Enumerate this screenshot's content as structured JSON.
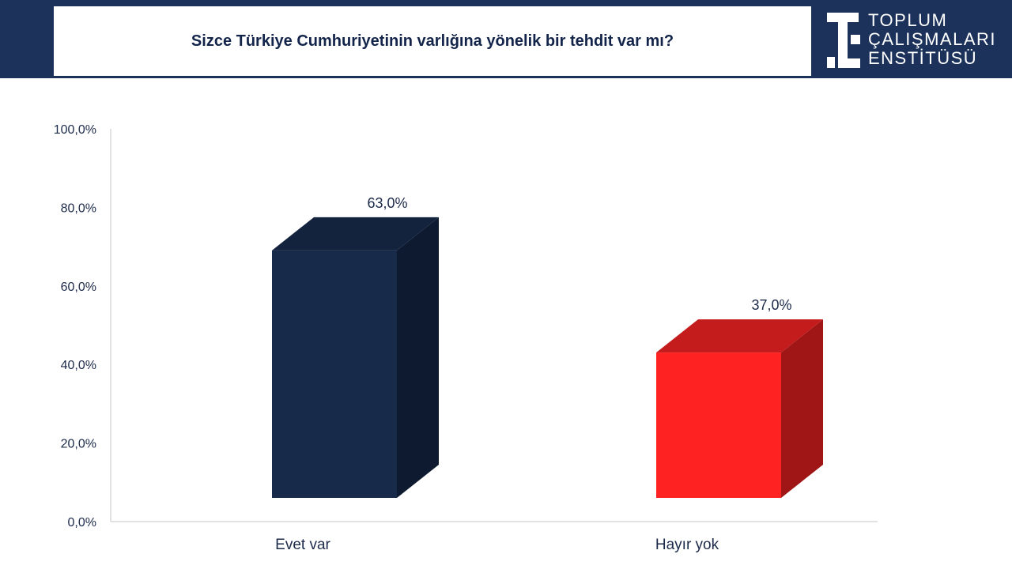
{
  "header": {
    "title": "Sizce Türkiye Cumhuriyetinin varlığına yönelik bir tehdit var mı?",
    "logo": {
      "lines": [
        "TOPLUM",
        "ÇALIŞMALARI",
        "ENSTİTÜSÜ"
      ]
    }
  },
  "chart_data": {
    "type": "bar",
    "title": "Sizce Türkiye Cumhuriyetinin varlığına yönelik bir tehdit var mı?",
    "categories": [
      "Evet var",
      "Hayır yok"
    ],
    "values": [
      63.0,
      37.0
    ],
    "data_labels": [
      "63,0%",
      "37,0%"
    ],
    "colors": [
      "#172a4a",
      "#ff2222"
    ],
    "ylim": [
      0,
      100
    ],
    "yticks": [
      "0,0%",
      "20,0%",
      "40,0%",
      "60,0%",
      "80,0%",
      "100,0%"
    ],
    "grid": false,
    "style": "3d"
  }
}
